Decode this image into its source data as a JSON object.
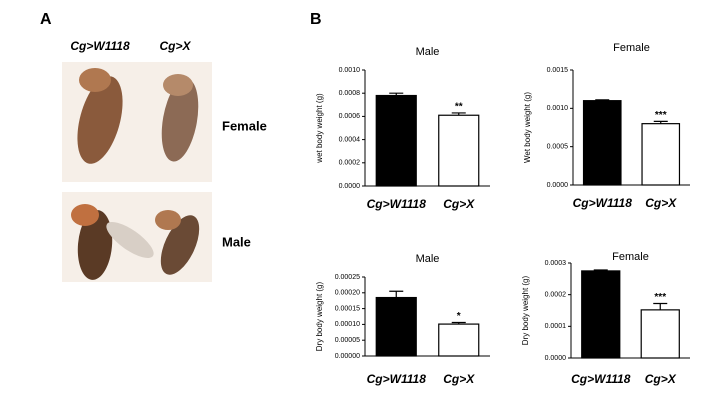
{
  "panel_labels": [
    "A",
    "B"
  ],
  "panel_a": {
    "genotypes": [
      "Cg>W1118",
      "Cg>X"
    ],
    "sexes": [
      "Female",
      "Male"
    ]
  },
  "chart_data": [
    {
      "type": "bar",
      "title": "Male",
      "y_label": "wet body weight (g)",
      "categories": [
        "Cg>W1118",
        "Cg>X"
      ],
      "values": [
        0.00078,
        0.00061
      ],
      "errors": [
        2e-05,
        2e-05
      ],
      "colors": [
        "#000000",
        "#ffffff"
      ],
      "annotation": "**",
      "ylim": [
        0,
        0.001
      ],
      "yticks": [
        {
          "value": 0,
          "label": "0.0000"
        },
        {
          "value": 0.0002,
          "label": "0.0002"
        },
        {
          "value": 0.0004,
          "label": "0.0004"
        },
        {
          "value": 0.0006,
          "label": "0.0006"
        },
        {
          "value": 0.0008,
          "label": "0.0008"
        },
        {
          "value": 0.001,
          "label": "0.0010"
        }
      ]
    },
    {
      "type": "bar",
      "title": "Female",
      "y_label": "Wet body weight (g)",
      "categories": [
        "Cg>W1118",
        "Cg>X"
      ],
      "values": [
        0.0011,
        0.0008
      ],
      "errors": [
        1e-05,
        3e-05
      ],
      "colors": [
        "#000000",
        "#ffffff"
      ],
      "annotation": "***",
      "ylim": [
        0,
        0.0015
      ],
      "yticks": [
        {
          "value": 0,
          "label": "0.0000"
        },
        {
          "value": 0.0005,
          "label": "0.0005"
        },
        {
          "value": 0.001,
          "label": "0.0010"
        },
        {
          "value": 0.0015,
          "label": "0.0015"
        }
      ]
    },
    {
      "type": "bar",
      "title": "Male",
      "y_label": "Dry body weight (g)",
      "categories": [
        "Cg>W1118",
        "Cg>X"
      ],
      "values": [
        0.000185,
        0.000101
      ],
      "errors": [
        2e-05,
        5e-06
      ],
      "colors": [
        "#000000",
        "#ffffff"
      ],
      "annotation": "*",
      "ylim": [
        0,
        0.00025
      ],
      "yticks": [
        {
          "value": 0,
          "label": "0.00000"
        },
        {
          "value": 5e-05,
          "label": "0.00005"
        },
        {
          "value": 0.0001,
          "label": "0.00010"
        },
        {
          "value": 0.00015,
          "label": "0.00015"
        },
        {
          "value": 0.0002,
          "label": "0.00020"
        },
        {
          "value": 0.00025,
          "label": "0.00025"
        }
      ]
    },
    {
      "type": "bar",
      "title": "Female",
      "y_label": "Dry body weight (g)",
      "categories": [
        "Cg>W1118",
        "Cg>X"
      ],
      "values": [
        0.000275,
        0.000152
      ],
      "errors": [
        3e-06,
        2e-05
      ],
      "colors": [
        "#000000",
        "#ffffff"
      ],
      "annotation": "***",
      "ylim": [
        0,
        0.0003
      ],
      "yticks": [
        {
          "value": 0,
          "label": "0.0000"
        },
        {
          "value": 0.0001,
          "label": "0.0001"
        },
        {
          "value": 0.0002,
          "label": "0.0002"
        },
        {
          "value": 0.0003,
          "label": "0.0003"
        }
      ]
    }
  ]
}
